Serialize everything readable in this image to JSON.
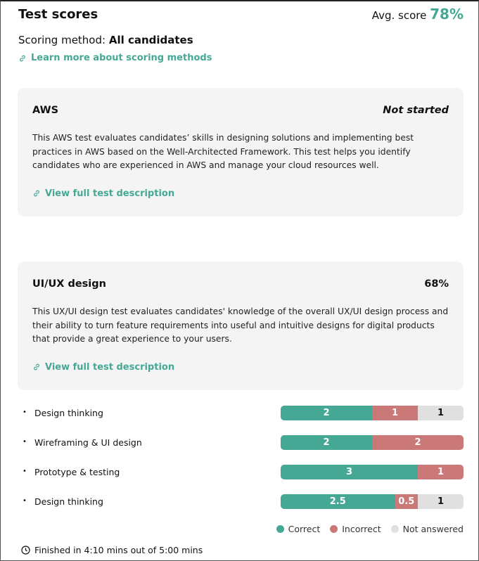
{
  "header": {
    "title": "Test scores",
    "avg_label": "Avg. score",
    "avg_value": "78%",
    "method_label": "Scoring method:",
    "method_value": "All candidates",
    "learn_link": "Learn more about scoring methods"
  },
  "tests": [
    {
      "name": "AWS",
      "status": "Not started",
      "description": "This AWS test evaluates candidates’ skills in designing solutions and implementing best practices in AWS based on the Well-Architected Framework. This test helps you identify candidates who are experienced in AWS and manage your cloud resources well.",
      "link": "View full test description"
    },
    {
      "name": "UI/UX design",
      "status": "68%",
      "description": "This UX/UI design test evaluates candidates' knowledge of the overall UX/UI design process and their ability to turn feature requirements into useful and intuitive designs for digital products that provide a great experience to your users.",
      "link": "View full test description"
    }
  ],
  "skills": [
    {
      "label": "Design thinking",
      "correct": "2",
      "incorrect": "1",
      "unanswered": "1",
      "c": 2,
      "x": 1,
      "n": 1
    },
    {
      "label": "Wireframing & UI design",
      "correct": "2",
      "incorrect": "2",
      "unanswered": "",
      "c": 2,
      "x": 2,
      "n": 0
    },
    {
      "label": "Prototype & testing",
      "correct": "3",
      "incorrect": "1",
      "unanswered": "",
      "c": 3,
      "x": 1,
      "n": 0
    },
    {
      "label": "Design thinking",
      "correct": "2.5",
      "incorrect": "0.5",
      "unanswered": "1",
      "c": 2.5,
      "x": 0.5,
      "n": 1
    }
  ],
  "legend": {
    "correct": "Correct",
    "incorrect": "Incorrect",
    "unanswered": "Not answered"
  },
  "colors": {
    "correct": "#45a895",
    "incorrect": "#cb7878",
    "unanswered": "#e0e0e0"
  },
  "footer": {
    "finished": "Finished in 4:10 mins out of 5:00 mins"
  }
}
